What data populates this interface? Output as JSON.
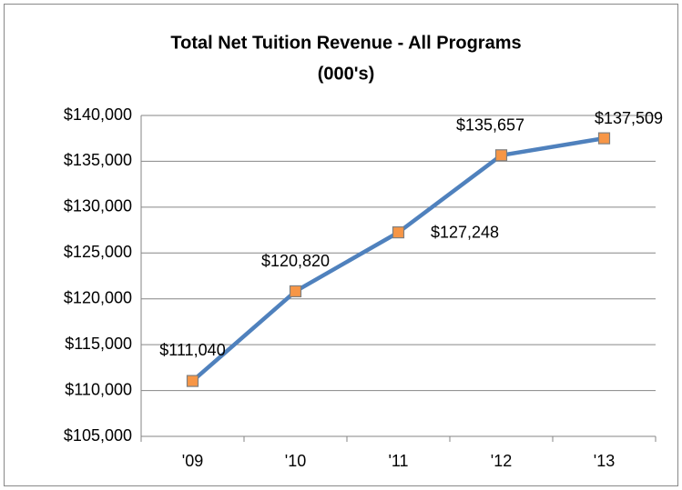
{
  "chart_data": {
    "type": "line",
    "title": [
      "Total Net Tuition Revenue - All Programs",
      "(000's)"
    ],
    "categories": [
      "'09",
      "'10",
      "'11",
      "'12",
      "'13"
    ],
    "series": [
      {
        "color": "#4f81bd",
        "marker_color": "#f79646",
        "values": [
          111040,
          120820,
          127248,
          135657,
          137509
        ],
        "value_labels": [
          "$111,040",
          "$120,820",
          "$127,248",
          "$135,657",
          "$137,509"
        ]
      }
    ],
    "ylim": [
      105000,
      140000
    ],
    "yticks": [
      {
        "value": 105000,
        "label": "$105,000"
      },
      {
        "value": 110000,
        "label": "$110,000"
      },
      {
        "value": 115000,
        "label": "$115,000"
      },
      {
        "value": 120000,
        "label": "$120,000"
      },
      {
        "value": 125000,
        "label": "$125,000"
      },
      {
        "value": 130000,
        "label": "$130,000"
      },
      {
        "value": 135000,
        "label": "$135,000"
      },
      {
        "value": 140000,
        "label": "$140,000"
      }
    ],
    "grid": true
  }
}
